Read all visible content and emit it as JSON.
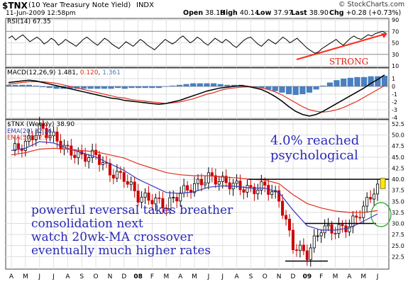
{
  "header": {
    "symbol": "$TNX",
    "name": "(10 Year Treasury Note Yield)",
    "exchange": "INDX",
    "date": "11-Jun-2009 12:58pm",
    "open_label": "Open",
    "open": "38.18",
    "high_label": "High",
    "high": "40.14",
    "low_label": "Low",
    "low": "37.97",
    "last_label": "Last",
    "last": "38.90",
    "chg_label": "Chg",
    "chg": "+0.28 (+0.73%)",
    "watermark": "© StockCharts.com"
  },
  "rsi": {
    "label": "RSI(14) 67.35",
    "ylim": [
      10,
      90
    ],
    "ticks": [
      "90",
      "70",
      "50",
      "30",
      "10"
    ],
    "annotation": "STRONG",
    "colors": {
      "line": "#000000",
      "arrow": "#ff2a1a",
      "fill": "#cc6666",
      "annotation": "#e02010"
    }
  },
  "macd": {
    "label": "MACD(12,26,9)",
    "macd_value": "1.481",
    "signal_value": "0.120",
    "hist_value": "1.361",
    "ylim": [
      -4,
      2
    ],
    "ticks": [
      "1",
      "0",
      "-1",
      "-2",
      "-3",
      "-4"
    ],
    "colors": {
      "macd": "#000000",
      "signal": "#e0301e",
      "hist": "#4a7fc0"
    }
  },
  "price": {
    "label": "$TNX (Weekly) 38.90",
    "ema20_label": "EMA(20) 32.16",
    "ema50_label": "EMA(50) 32.91",
    "ylim": [
      20,
      52.5
    ],
    "ticks": [
      "52.5",
      "50.0",
      "47.5",
      "45.0",
      "42.5",
      "40.0",
      "37.5",
      "35.0",
      "32.5",
      "30.0",
      "27.5",
      "25.0",
      "22.5"
    ],
    "annotation_top": [
      "4.0% reached",
      "psychological"
    ],
    "annotation_bottom": [
      "powerful reversal takes breather",
      "consolidation next",
      "watch 20wk-MA crossover",
      "eventually much higher rates"
    ],
    "colors": {
      "up": "#000000",
      "down": "#cc0000",
      "ema20": "#3a3ab8",
      "ema50": "#e0301e",
      "annotation": "#2a2ab8",
      "circle": "#2ea82e",
      "highlight": "#ffe600"
    }
  },
  "x_axis": {
    "labels": [
      "A",
      "M",
      "J",
      "J",
      "A",
      "S",
      "O",
      "N",
      "D",
      "08",
      "F",
      "M",
      "A",
      "M",
      "J",
      "J",
      "A",
      "S",
      "O",
      "N",
      "D",
      "09",
      "F",
      "M",
      "A",
      "M",
      "J"
    ]
  },
  "chart_data": {
    "type": "line",
    "title": "$TNX (10 Year Treasury Note Yield) INDX",
    "x": [
      "Apr 07",
      "May 07",
      "Jun 07",
      "Jul 07",
      "Aug 07",
      "Sep 07",
      "Oct 07",
      "Nov 07",
      "Dec 07",
      "Jan 08",
      "Feb 08",
      "Mar 08",
      "Apr 08",
      "May 08",
      "Jun 08",
      "Jul 08",
      "Aug 08",
      "Sep 08",
      "Oct 08",
      "Nov 08",
      "Dec 08",
      "Jan 09",
      "Feb 09",
      "Mar 09",
      "Apr 09",
      "May 09",
      "Jun 09"
    ],
    "series": [
      {
        "name": "$TNX (Weekly)",
        "values": [
          46.5,
          48.0,
          51.5,
          49.5,
          46.5,
          45.0,
          45.5,
          41.5,
          40.5,
          36.0,
          35.5,
          34.0,
          37.0,
          38.5,
          40.5,
          39.5,
          38.5,
          37.5,
          38.5,
          35.5,
          25.0,
          23.0,
          29.0,
          28.5,
          29.5,
          33.5,
          38.9
        ]
      },
      {
        "name": "EMA(20)",
        "values": [
          46.5,
          47.0,
          48.5,
          48.2,
          47.0,
          46.0,
          45.0,
          43.5,
          42.0,
          40.0,
          38.5,
          37.0,
          36.8,
          37.2,
          38.2,
          38.5,
          38.4,
          38.0,
          38.0,
          37.0,
          33.0,
          29.5,
          28.5,
          28.5,
          29.0,
          30.5,
          32.16
        ]
      },
      {
        "name": "EMA(50)",
        "values": [
          45.5,
          46.0,
          46.8,
          47.0,
          46.8,
          46.5,
          46.2,
          45.5,
          44.8,
          43.5,
          42.5,
          41.5,
          41.0,
          40.8,
          40.8,
          40.5,
          40.3,
          40.0,
          39.8,
          39.0,
          36.5,
          34.5,
          33.5,
          32.8,
          32.5,
          32.5,
          32.91
        ]
      }
    ],
    "ylabel": "",
    "ylim": [
      20,
      52.5
    ],
    "grid": true
  }
}
